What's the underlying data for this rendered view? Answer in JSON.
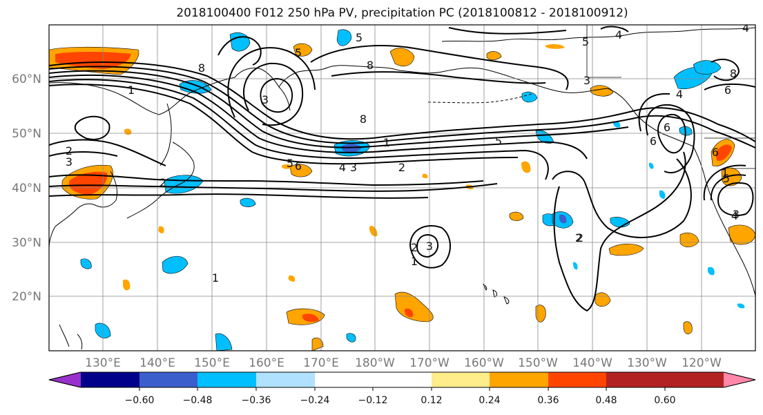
{
  "title": "2018100400 F012 250 hPa PV, precipitation PC (2018100812 - 2018100912)",
  "latitude_labels": [
    "60°N",
    "50°N",
    "40°N",
    "30°N",
    "20°N"
  ],
  "longitude_labels": [
    "130°E",
    "140°E",
    "150°E",
    "160°E",
    "170°E",
    "180°W",
    "170°W",
    "160°W",
    "150°W",
    "140°W",
    "130°W",
    "120°W"
  ],
  "colorbar": {
    "tick_labels": [
      "−0.60",
      "−0.48",
      "−0.36",
      "−0.24",
      "−0.12",
      "0.12",
      "0.24",
      "0.36",
      "0.48",
      "0.60"
    ],
    "colors": [
      "#9932CC",
      "#00008B",
      "#3A5FCD",
      "#00BFFF",
      "#B0E2FF",
      "#FFFFFF",
      "#FFEC8B",
      "#FFA500",
      "#FF4500",
      "#B22222",
      "#FF88AA"
    ]
  },
  "contour_labels": [
    "1",
    "2",
    "3",
    "4",
    "5",
    "6",
    "8",
    "1",
    "2",
    "3",
    "4",
    "5",
    "6",
    "8",
    "1",
    "2",
    "3",
    "4",
    "5",
    "6",
    "8",
    "1",
    "2",
    "3",
    "4",
    "5",
    "6",
    "8",
    "1",
    "2",
    "3",
    "4",
    "5",
    "6",
    "3",
    "5",
    "2"
  ]
}
